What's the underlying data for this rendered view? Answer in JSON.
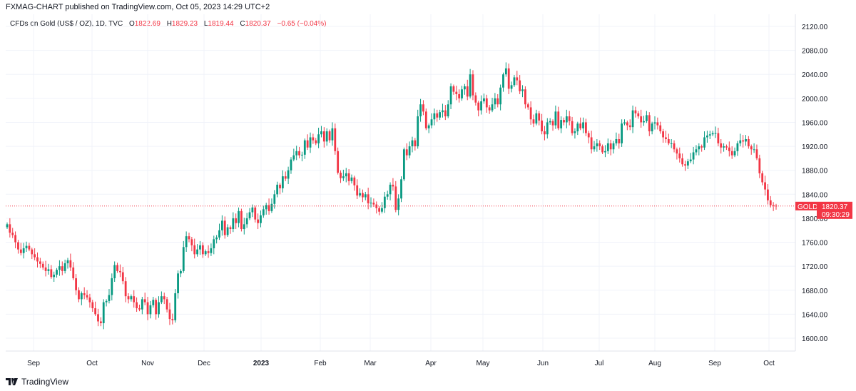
{
  "header": {
    "published": "FXMAG-CHART published on TradingView.com, Oct 05, 2023 14:29 UTC+2"
  },
  "legend": {
    "symbol": "CFDs on Gold (US$ / OZ), 1D, TVC",
    "o_label": "O",
    "o": "1822.69",
    "h_label": "H",
    "h": "1829.23",
    "l_label": "L",
    "l": "1819.44",
    "c_label": "C",
    "c": "1820.37",
    "change": "−0.65 (−0.04%)"
  },
  "price_tag": {
    "ticker": "GOLD",
    "price": "1820.37",
    "countdown": "09:30:29"
  },
  "footer": {
    "logo_text": "TradingView"
  },
  "colors": {
    "up": "#089981",
    "down": "#f23645",
    "grid": "#f0f3fa"
  },
  "chart_data": {
    "type": "candlestick",
    "ylim": [
      1590,
      2140
    ],
    "y_ticks": [
      "2120.00",
      "2080.00",
      "2040.00",
      "2000.00",
      "1960.00",
      "1920.00",
      "1880.00",
      "1840.00",
      "1800.00",
      "1760.00",
      "1720.00",
      "1680.00",
      "1640.00",
      "1600.00"
    ],
    "x_ticks": [
      "Sep",
      "Oct",
      "Nov",
      "Dec",
      "2023",
      "Feb",
      "Mar",
      "Apr",
      "May",
      "Jun",
      "Jul",
      "Aug",
      "Sep",
      "Oct"
    ],
    "last_price": 1820.37,
    "first_open": 1785,
    "close": [
      1790,
      1776,
      1772,
      1760,
      1748,
      1742,
      1750,
      1754,
      1748,
      1740,
      1735,
      1728,
      1724,
      1718,
      1712,
      1715,
      1702,
      1706,
      1714,
      1720,
      1712,
      1725,
      1730,
      1718,
      1700,
      1680,
      1665,
      1675,
      1672,
      1668,
      1660,
      1650,
      1640,
      1628,
      1625,
      1660,
      1662,
      1672,
      1700,
      1722,
      1712,
      1710,
      1695,
      1670,
      1665,
      1670,
      1660,
      1650,
      1648,
      1665,
      1660,
      1640,
      1655,
      1664,
      1640,
      1660,
      1670,
      1665,
      1648,
      1632,
      1630,
      1675,
      1708,
      1712,
      1752,
      1770,
      1765,
      1755,
      1740,
      1748,
      1755,
      1740,
      1745,
      1742,
      1750,
      1765,
      1768,
      1780,
      1796,
      1772,
      1785,
      1782,
      1800,
      1792,
      1812,
      1782,
      1790,
      1800,
      1810,
      1818,
      1798,
      1792,
      1805,
      1815,
      1822,
      1812,
      1824,
      1840,
      1856,
      1850,
      1870,
      1866,
      1880,
      1898,
      1905,
      1912,
      1905,
      1906,
      1930,
      1918,
      1935,
      1930,
      1925,
      1940,
      1945,
      1928,
      1945,
      1930,
      1950,
      1912,
      1876,
      1867,
      1870,
      1875,
      1862,
      1868,
      1855,
      1838,
      1842,
      1835,
      1840,
      1825,
      1826,
      1823,
      1817,
      1811,
      1817,
      1836,
      1840,
      1856,
      1853,
      1814,
      1833,
      1865,
      1915,
      1905,
      1920,
      1930,
      1920,
      1970,
      1990,
      1978,
      1950,
      1955,
      1965,
      1975,
      1968,
      1977,
      1980,
      1970,
      1990,
      2020,
      2011,
      2007,
      2000,
      2015,
      2020,
      2003,
      2040,
      2005,
      1993,
      1980,
      1995,
      2000,
      1985,
      1980,
      1990,
      2000,
      1990,
      2018,
      2040,
      2050,
      2016,
      2022,
      2035,
      2030,
      2012,
      2015,
      1990,
      1985,
      1965,
      1958,
      1975,
      1963,
      1945,
      1940,
      1960,
      1962,
      1955,
      1978,
      1950,
      1964,
      1960,
      1970,
      1962,
      1942,
      1945,
      1958,
      1950,
      1960,
      1942,
      1935,
      1915,
      1920,
      1925,
      1920,
      1910,
      1912,
      1925,
      1915,
      1925,
      1932,
      1925,
      1958,
      1960,
      1955,
      1952,
      1980,
      1975,
      1970,
      1960,
      1962,
      1972,
      1945,
      1958,
      1960,
      1955,
      1945,
      1935,
      1932,
      1925,
      1925,
      1915,
      1908,
      1900,
      1890,
      1888,
      1895,
      1898,
      1910,
      1915,
      1920,
      1918,
      1935,
      1938,
      1940,
      1942,
      1942,
      1925,
      1918,
      1920,
      1918,
      1912,
      1905,
      1912,
      1925,
      1930,
      1928,
      1932,
      1920,
      1915,
      1915,
      1900,
      1875,
      1860,
      1848,
      1830,
      1822,
      1821,
      1820.37
    ]
  }
}
